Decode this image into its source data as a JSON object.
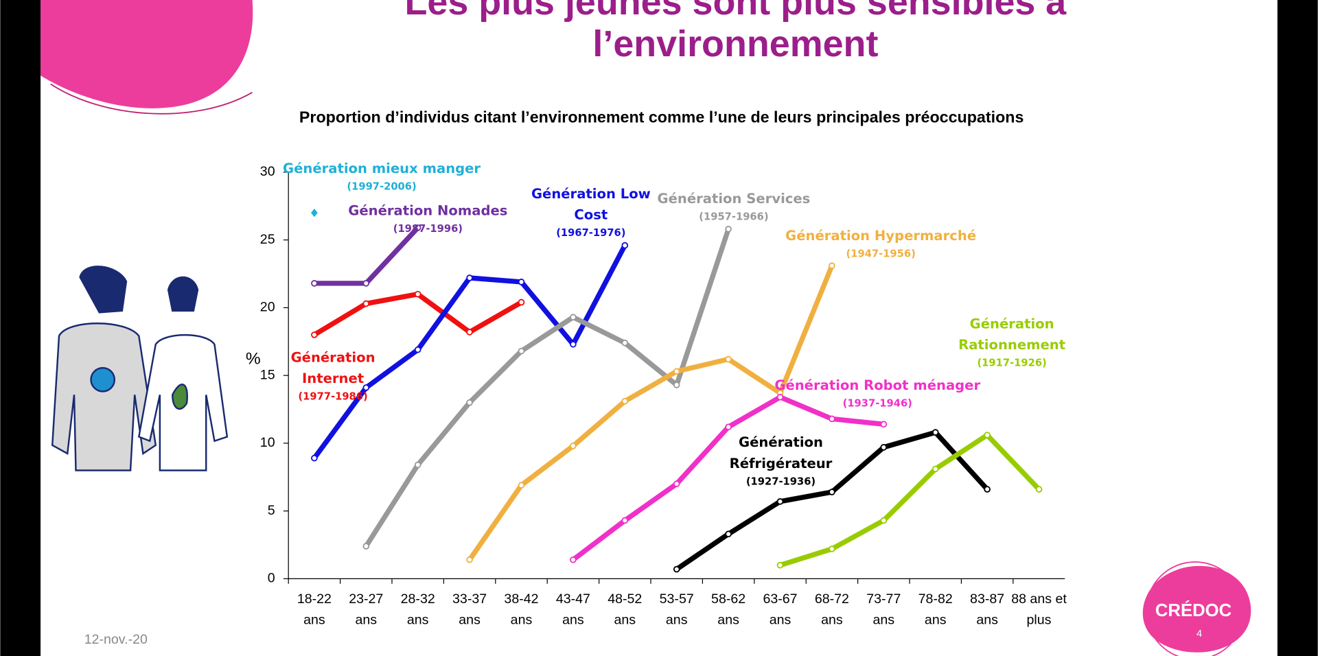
{
  "chart_data": {
    "type": "line",
    "title": "Les plus jeunes sont plus sensibles à l’environnement",
    "subtitle": "Proportion d’individus citant l’environnement comme l’une de leurs principales préoccupations",
    "ylabel": "%",
    "categories": [
      "18-22 ans",
      "23-27 ans",
      "28-32 ans",
      "33-37 ans",
      "38-42 ans",
      "43-47 ans",
      "48-52 ans",
      "53-57 ans",
      "58-62 ans",
      "63-67 ans",
      "68-72 ans",
      "73-77 ans",
      "78-82 ans",
      "83-87 ans",
      "88 ans et plus"
    ],
    "ylim": [
      0,
      30
    ],
    "yticks": [
      0,
      5,
      10,
      15,
      20,
      25,
      30
    ],
    "series": [
      {
        "name": "Génération mieux manger",
        "years": "(1997-2006)",
        "color": "#1fb0d8",
        "values": [
          27.0,
          null,
          null,
          null,
          null,
          null,
          null,
          null,
          null,
          null,
          null,
          null,
          null,
          null,
          null
        ]
      },
      {
        "name": "Génération Nomades",
        "years": "(1987-1996)",
        "color": "#7030a0",
        "values": [
          21.8,
          21.8,
          25.9,
          null,
          null,
          null,
          null,
          null,
          null,
          null,
          null,
          null,
          null,
          null,
          null
        ]
      },
      {
        "name": "Génération Internet",
        "years": "(1977-1986)",
        "color": "#f01010",
        "values": [
          18.0,
          20.3,
          21.0,
          18.2,
          20.4,
          null,
          null,
          null,
          null,
          null,
          null,
          null,
          null,
          null,
          null
        ]
      },
      {
        "name": "Génération Low Cost",
        "years": "(1967-1976)",
        "color": "#1010e0",
        "values": [
          8.9,
          14.1,
          16.9,
          22.2,
          21.9,
          17.3,
          24.6,
          null,
          null,
          null,
          null,
          null,
          null,
          null,
          null
        ]
      },
      {
        "name": "Génération Services",
        "years": "(1957-1966)",
        "color": "#999999",
        "values": [
          null,
          2.4,
          8.4,
          13.0,
          16.8,
          19.3,
          17.4,
          14.3,
          25.8,
          null,
          null,
          null,
          null,
          null,
          null
        ]
      },
      {
        "name": "Génération  Hypermarché",
        "years": "(1947-1956)",
        "color": "#f0b040",
        "values": [
          null,
          null,
          null,
          1.4,
          6.9,
          9.8,
          13.1,
          15.3,
          16.2,
          13.7,
          23.1,
          null,
          null,
          null,
          null
        ]
      },
      {
        "name": "Génération Robot ménager",
        "years": "(1937-1946)",
        "color": "#f030c8",
        "values": [
          null,
          null,
          null,
          null,
          null,
          1.4,
          4.3,
          7.0,
          11.2,
          13.4,
          11.8,
          11.4,
          null,
          null,
          null
        ]
      },
      {
        "name": "Génération Réfrigérateur",
        "years": "(1927-1936)",
        "color": "#000000",
        "values": [
          null,
          null,
          null,
          null,
          null,
          null,
          null,
          0.7,
          3.3,
          5.7,
          6.4,
          9.7,
          10.8,
          6.6,
          null
        ]
      },
      {
        "name": "Génération Rationnement",
        "years": "(1917-1926)",
        "color": "#99cc00",
        "values": [
          null,
          null,
          null,
          null,
          null,
          null,
          null,
          null,
          null,
          1.0,
          2.2,
          4.3,
          8.1,
          10.6,
          6.6
        ]
      }
    ]
  },
  "footer": {
    "date": "12-nov.-20",
    "logo": "CRÉDOC",
    "page": "4"
  }
}
